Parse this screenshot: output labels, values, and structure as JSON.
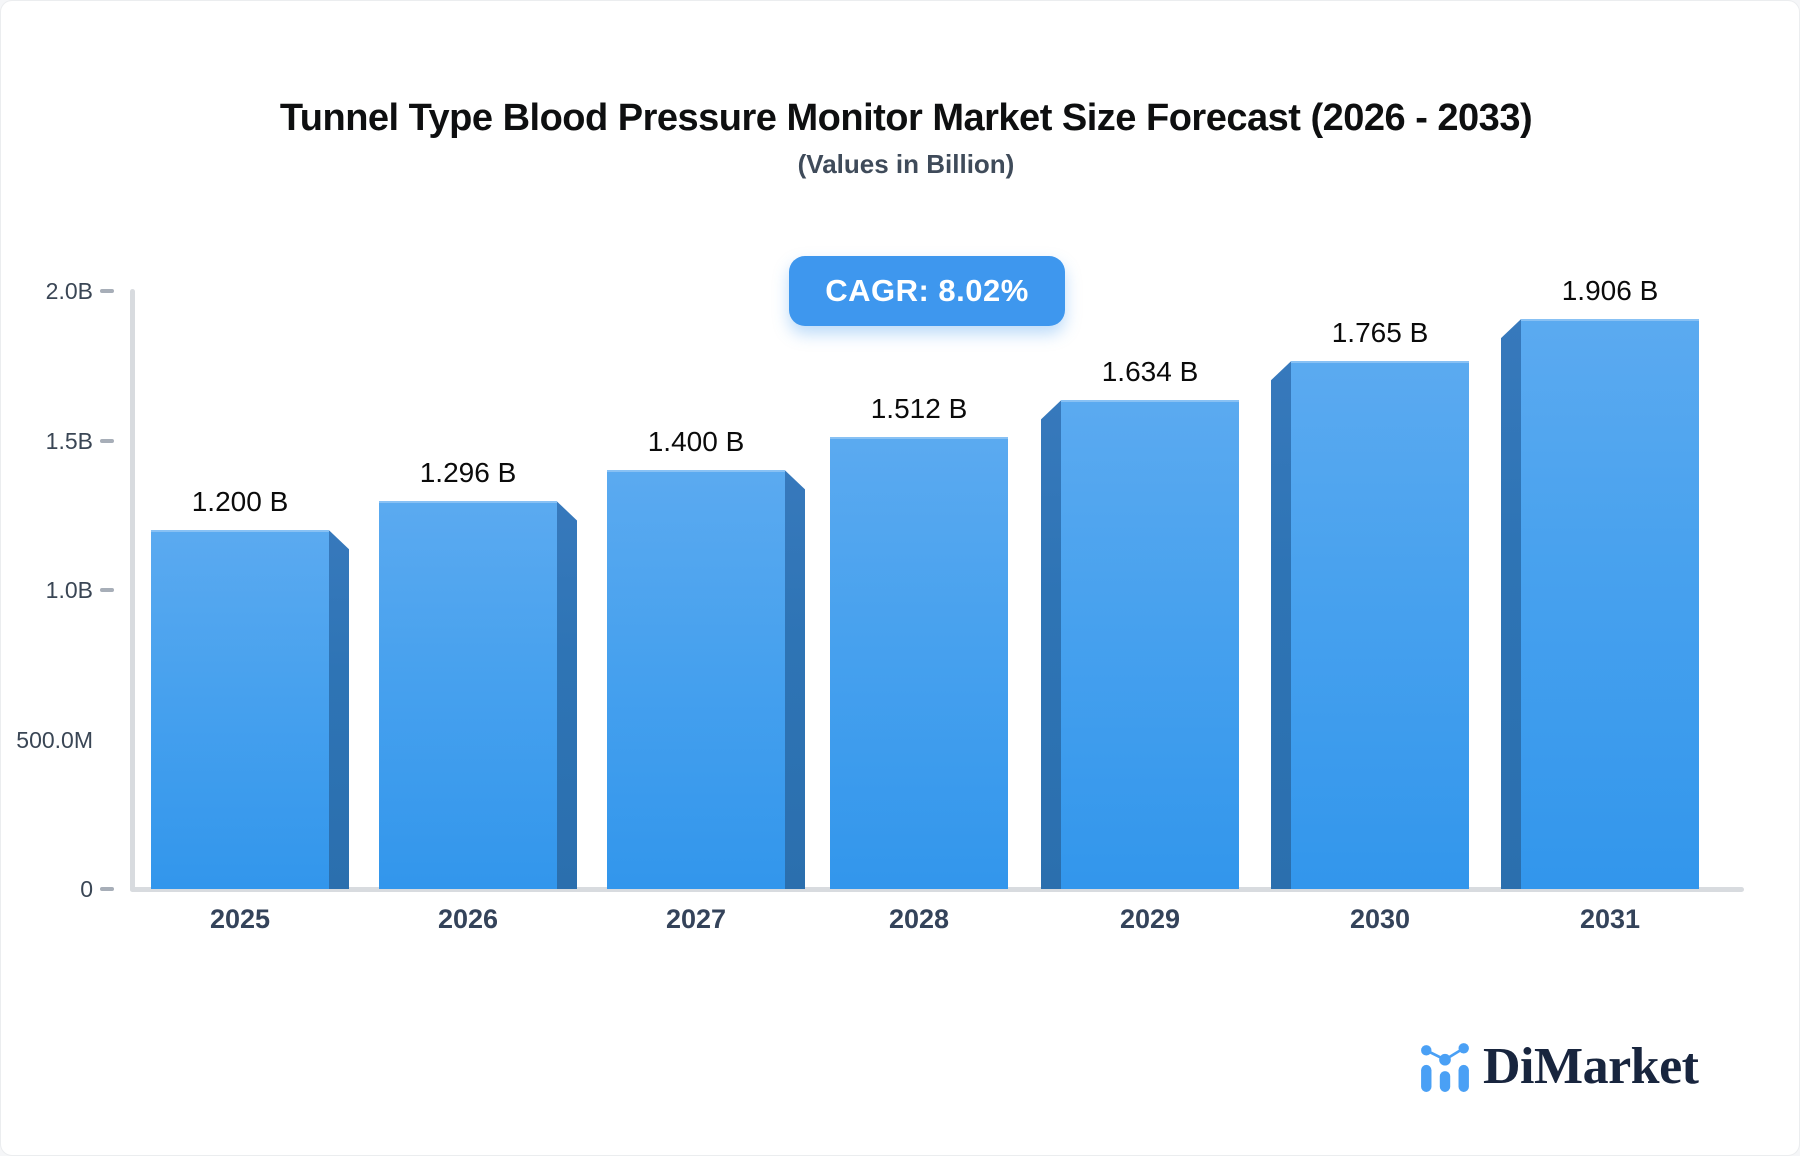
{
  "page": {
    "title": "Tunnel Type Blood Pressure Monitor Market Size Forecast (2026 - 2033)",
    "subtitle": "(Values in Billion)",
    "cagr_label": "CAGR: 8.02%"
  },
  "chart_data": {
    "type": "bar",
    "title": "Tunnel Type Blood Pressure Monitor Market Size Forecast (2026 - 2033)",
    "subtitle": "(Values in Billion)",
    "unit": "Billion",
    "cagr": "8.02%",
    "categories": [
      "2025",
      "2026",
      "2027",
      "2028",
      "2029",
      "2030",
      "2031"
    ],
    "values": [
      1.2,
      1.296,
      1.4,
      1.512,
      1.634,
      1.765,
      1.906
    ],
    "bar_labels": [
      "1.200 B",
      "1.296 B",
      "1.400 B",
      "1.512 B",
      "1.634 B",
      "1.765 B",
      "1.906 B"
    ],
    "ylim": [
      0,
      2.0
    ],
    "y_ticks": [
      {
        "value": 2.0,
        "label": "2.0B",
        "dash": true
      },
      {
        "value": 1.5,
        "label": "1.5B",
        "dash": true
      },
      {
        "value": 1.0,
        "label": "1.0B",
        "dash": true
      },
      {
        "value": 0.5,
        "label": "500.0M",
        "dash": false
      },
      {
        "value": 0,
        "label": "0",
        "dash": true
      }
    ],
    "grid": false,
    "legend": "none",
    "colors": {
      "bar_top": "#5BAAF0",
      "bar_bottom": "#3296EC",
      "bar_side": "#2E74B5",
      "axis": "#D8DBDF",
      "badge": "#3E97EE"
    }
  },
  "logo": {
    "text": "DiMarket"
  }
}
